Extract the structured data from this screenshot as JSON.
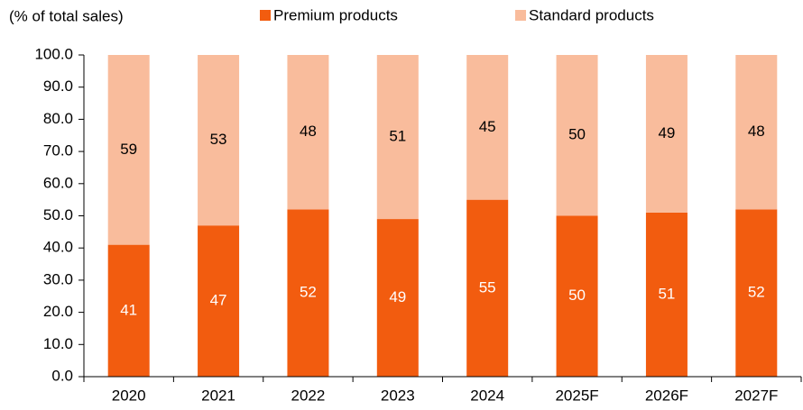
{
  "chart_data": {
    "type": "stacked_bar",
    "y_axis_label": "(% of total sales)",
    "categories": [
      "2020",
      "2021",
      "2022",
      "2023",
      "2024",
      "2025F",
      "2026F",
      "2027F"
    ],
    "series": [
      {
        "name": "Premium products",
        "color": "#f25c0f",
        "values": [
          41,
          47,
          52,
          49,
          55,
          50,
          51,
          52
        ]
      },
      {
        "name": "Standard products",
        "color": "#f9bc9c",
        "values": [
          59,
          53,
          48,
          51,
          45,
          50,
          49,
          48
        ]
      }
    ],
    "ylim": [
      0,
      100
    ],
    "yticks": [
      {
        "value": 0,
        "label": "0.0"
      },
      {
        "value": 10,
        "label": "10.0"
      },
      {
        "value": 20,
        "label": "20.0"
      },
      {
        "value": 30,
        "label": "30.0"
      },
      {
        "value": 40,
        "label": "40.0"
      },
      {
        "value": 50,
        "label": "50.0"
      },
      {
        "value": 60,
        "label": "60.0"
      },
      {
        "value": 70,
        "label": "70.0"
      },
      {
        "value": 80,
        "label": "80.0"
      },
      {
        "value": 90,
        "label": "90.0"
      },
      {
        "value": 100,
        "label": "100.0"
      }
    ],
    "legend": "top",
    "label_colors": [
      "#ffffff",
      "#000000"
    ]
  }
}
